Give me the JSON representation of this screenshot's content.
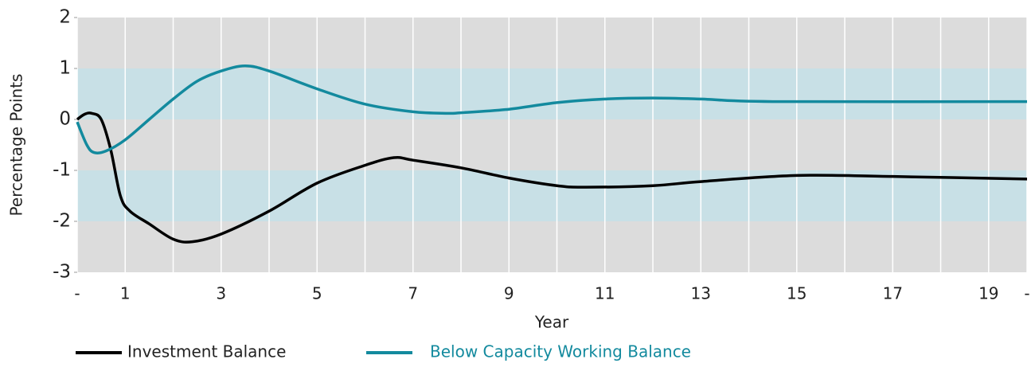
{
  "chart_data": {
    "type": "line",
    "y_label": "Percentage Points",
    "x_label": "Year",
    "xlim": [
      0,
      19.8
    ],
    "ylim": [
      -3,
      2
    ],
    "xticks": [
      {
        "value": 0,
        "label": "-"
      },
      1,
      3,
      5,
      7,
      9,
      11,
      13,
      15,
      17,
      19,
      {
        "value": 19.8,
        "label": "-"
      }
    ],
    "x_minor_ticks": [
      2,
      4,
      6,
      8,
      10,
      12,
      14,
      16,
      18
    ],
    "yticks": [
      2,
      1,
      0,
      -1,
      -2,
      -3
    ],
    "bands": [
      [
        0,
        1
      ],
      [
        -2,
        -1
      ]
    ],
    "band_color": "#c8e0e6",
    "background": "#dcdcdc",
    "series": [
      {
        "name": "Investment Balance",
        "color": "#000000",
        "x": [
          0,
          0.15,
          0.3,
          0.5,
          0.7,
          0.9,
          1.1,
          1.5,
          2,
          2.4,
          3,
          4,
          5,
          6,
          6.6,
          7,
          8,
          9,
          10,
          10.6,
          12,
          13,
          15,
          17,
          19.8
        ],
        "values": [
          0,
          0.1,
          0.12,
          0,
          -0.6,
          -1.5,
          -1.8,
          -2.05,
          -2.35,
          -2.4,
          -2.25,
          -1.8,
          -1.25,
          -0.9,
          -0.75,
          -0.8,
          -0.95,
          -1.15,
          -1.3,
          -1.33,
          -1.3,
          -1.22,
          -1.1,
          -1.12,
          -1.17
        ]
      },
      {
        "name": "Below Capacity Working Balance",
        "color": "#138a9e",
        "x": [
          0,
          0.2,
          0.35,
          0.6,
          1,
          1.5,
          2,
          2.5,
          3,
          3.5,
          4,
          5,
          6,
          7,
          7.7,
          8,
          9,
          10,
          11,
          12,
          13,
          14.5,
          19.8
        ],
        "values": [
          -0.05,
          -0.5,
          -0.65,
          -0.62,
          -0.4,
          0,
          0.4,
          0.75,
          0.95,
          1.05,
          0.95,
          0.6,
          0.3,
          0.15,
          0.12,
          0.13,
          0.2,
          0.33,
          0.4,
          0.42,
          0.4,
          0.35,
          0.35
        ]
      }
    ]
  }
}
